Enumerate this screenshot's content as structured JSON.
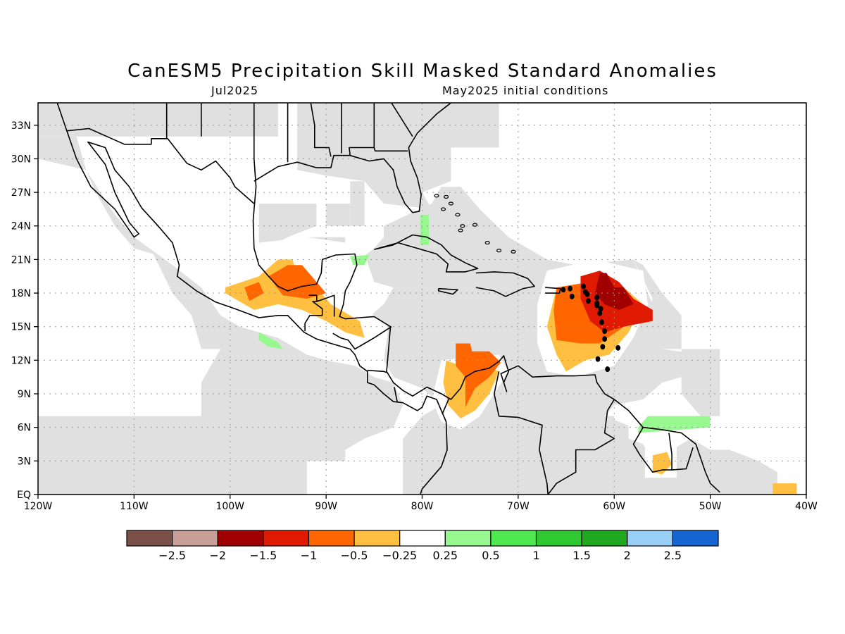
{
  "title": "CanESM5 Precipitation Skill Masked Standard Anomalies",
  "subtitle_left": "Jul2025",
  "subtitle_right": "May2025 initial conditions",
  "map": {
    "lon_range": [
      -120,
      -40
    ],
    "lat_range": [
      0,
      35
    ],
    "lon_ticks": [
      {
        "v": -120,
        "label": "120W"
      },
      {
        "v": -110,
        "label": "110W"
      },
      {
        "v": -100,
        "label": "100W"
      },
      {
        "v": -90,
        "label": "90W"
      },
      {
        "v": -80,
        "label": "80W"
      },
      {
        "v": -70,
        "label": "70W"
      },
      {
        "v": -60,
        "label": "60W"
      },
      {
        "v": -50,
        "label": "50W"
      },
      {
        "v": -40,
        "label": "40W"
      }
    ],
    "lat_ticks": [
      {
        "v": 0,
        "label": "EQ"
      },
      {
        "v": 3,
        "label": "3N"
      },
      {
        "v": 6,
        "label": "6N"
      },
      {
        "v": 9,
        "label": "9N"
      },
      {
        "v": 12,
        "label": "12N"
      },
      {
        "v": 15,
        "label": "15N"
      },
      {
        "v": 18,
        "label": "18N"
      },
      {
        "v": 21,
        "label": "21N"
      },
      {
        "v": 24,
        "label": "24N"
      },
      {
        "v": 27,
        "label": "27N"
      },
      {
        "v": 30,
        "label": "30N"
      },
      {
        "v": 33,
        "label": "33N"
      }
    ],
    "grid": true,
    "mask_color": "#e0e0e0"
  },
  "colorbar": {
    "colors": [
      "#7a5048",
      "#c8a098",
      "#a00000",
      "#e01a00",
      "#ff6600",
      "#ffbf40",
      "#ffffff",
      "#98f890",
      "#50e850",
      "#30c830",
      "#20a820",
      "#98d0f8",
      "#1464d2"
    ],
    "labels": [
      "−2.5",
      "−2",
      "−1.5",
      "−1",
      "−0.5",
      "−0.25",
      "0.25",
      "0.5",
      "1",
      "1.5",
      "2",
      "2.5"
    ]
  },
  "anomaly_regions": [
    {
      "name": "southern-mexico-dry",
      "category": "-0.25",
      "polygon": [
        [
          -100.5,
          18.5
        ],
        [
          -97,
          19.5
        ],
        [
          -95,
          21
        ],
        [
          -93.5,
          21
        ],
        [
          -93,
          19.5
        ],
        [
          -91,
          18.5
        ],
        [
          -89.5,
          17
        ],
        [
          -87.5,
          16
        ],
        [
          -86.5,
          15.5
        ],
        [
          -86,
          14
        ],
        [
          -88,
          14.5
        ],
        [
          -90,
          15.5
        ],
        [
          -92.5,
          16.5
        ],
        [
          -95,
          17
        ],
        [
          -97.5,
          16.5
        ],
        [
          -100.5,
          18
        ]
      ]
    },
    {
      "name": "gulf-campeche-dry",
      "category": "-0.5",
      "polygon": [
        [
          -96,
          19.5
        ],
        [
          -94,
          20.5
        ],
        [
          -92.5,
          20.5
        ],
        [
          -91,
          19
        ],
        [
          -90,
          18
        ],
        [
          -92,
          17.5
        ],
        [
          -94.5,
          17.8
        ]
      ]
    },
    {
      "name": "guerrero-dry",
      "category": "-0.5",
      "polygon": [
        [
          -98.5,
          18.5
        ],
        [
          -97,
          19
        ],
        [
          -96.5,
          18
        ],
        [
          -98,
          17.3
        ]
      ]
    },
    {
      "name": "pacific-mexico-wet",
      "category": "0.5",
      "polygon": [
        [
          -97,
          14.5
        ],
        [
          -95,
          13.6
        ],
        [
          -94.5,
          13
        ],
        [
          -96,
          13.2
        ],
        [
          -97,
          13.8
        ]
      ]
    },
    {
      "name": "yucatan-channel-wet",
      "category": "0.5",
      "polygon": [
        [
          -87.5,
          21.3
        ],
        [
          -85.5,
          21.4
        ],
        [
          -86,
          20.5
        ],
        [
          -87.2,
          20.5
        ]
      ]
    },
    {
      "name": "cuba-wet",
      "category": "0.5",
      "polygon": [
        [
          -80.2,
          25
        ],
        [
          -79.3,
          25
        ],
        [
          -79.3,
          22.3
        ],
        [
          -80.2,
          22.3
        ]
      ]
    },
    {
      "name": "colombia-dry",
      "category": "-0.25",
      "polygon": [
        [
          -77.5,
          12
        ],
        [
          -76,
          11.5
        ],
        [
          -73.5,
          11.5
        ],
        [
          -72,
          11
        ],
        [
          -73,
          9
        ],
        [
          -74.5,
          7.5
        ],
        [
          -76,
          6.8
        ],
        [
          -77.3,
          8
        ],
        [
          -77.8,
          10
        ]
      ]
    },
    {
      "name": "colombia-drier",
      "category": "-0.5",
      "polygon": [
        [
          -76.5,
          13.5
        ],
        [
          -75,
          13.5
        ],
        [
          -74.8,
          12.8
        ],
        [
          -73,
          12.8
        ],
        [
          -71.8,
          11.8
        ],
        [
          -73,
          10.5
        ],
        [
          -74.5,
          9.5
        ],
        [
          -75.5,
          7.8
        ],
        [
          -75.5,
          10.5
        ],
        [
          -76.5,
          11.5
        ]
      ]
    },
    {
      "name": "caribbean-east-dry",
      "category": "-0.25",
      "polygon": [
        [
          -66,
          18.5
        ],
        [
          -62.5,
          19
        ],
        [
          -59,
          18.5
        ],
        [
          -57,
          17
        ],
        [
          -58.5,
          14.5
        ],
        [
          -60.5,
          12.5
        ],
        [
          -63,
          12
        ],
        [
          -65,
          11
        ],
        [
          -66,
          12.5
        ],
        [
          -67,
          15
        ]
      ]
    },
    {
      "name": "caribbean-east-drier",
      "category": "-0.5",
      "polygon": [
        [
          -66,
          18.5
        ],
        [
          -62.5,
          19
        ],
        [
          -59,
          18.5
        ],
        [
          -57.5,
          17
        ],
        [
          -59,
          15
        ],
        [
          -61.5,
          13.5
        ],
        [
          -63.5,
          13.5
        ],
        [
          -66,
          13.8
        ],
        [
          -66.3,
          16.5
        ]
      ]
    },
    {
      "name": "caribbean-east-drier-2",
      "category": "-1",
      "polygon": [
        [
          -63.5,
          19.5
        ],
        [
          -61.5,
          20
        ],
        [
          -59.5,
          19
        ],
        [
          -58,
          17.5
        ],
        [
          -56,
          16.5
        ],
        [
          -56,
          15.5
        ],
        [
          -59,
          15
        ],
        [
          -61,
          14.5
        ],
        [
          -62.5,
          15.5
        ],
        [
          -63.5,
          17.5
        ]
      ]
    },
    {
      "name": "caribbean-east-driest",
      "category": "-1.5",
      "polygon": [
        [
          -61.5,
          19.8
        ],
        [
          -60.8,
          19.8
        ],
        [
          -60,
          18.5
        ],
        [
          -59,
          18.5
        ],
        [
          -58,
          17
        ],
        [
          -59.5,
          16.5
        ],
        [
          -61,
          17
        ],
        [
          -62,
          18
        ]
      ]
    },
    {
      "name": "guianas-wet",
      "category": "0.5",
      "polygon": [
        [
          -56.5,
          7
        ],
        [
          -50,
          7
        ],
        [
          -50,
          6
        ],
        [
          -53,
          5.8
        ],
        [
          -57.5,
          5.5
        ],
        [
          -57.5,
          6
        ]
      ]
    },
    {
      "name": "guianas-dry",
      "category": "-0.25",
      "polygon": [
        [
          -56,
          3.5
        ],
        [
          -54.5,
          3.8
        ],
        [
          -54,
          2.7
        ],
        [
          -55,
          1.8
        ],
        [
          -56,
          2
        ]
      ]
    },
    {
      "name": "brazil-coast-dry",
      "category": "-0.25",
      "polygon": [
        [
          -43.5,
          1
        ],
        [
          -41,
          1
        ],
        [
          -41,
          0
        ],
        [
          -43.5,
          0
        ]
      ]
    }
  ]
}
